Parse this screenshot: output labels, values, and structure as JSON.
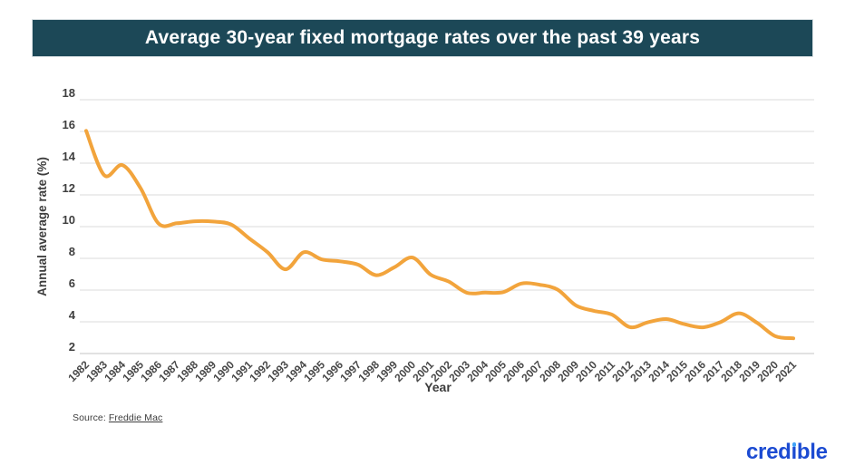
{
  "banner": {
    "title": "Average 30-year fixed mortgage rates over the past 39 years",
    "bg_color": "#1C4857",
    "text_color": "#FFFFFF"
  },
  "chart_data": {
    "type": "line",
    "title": "Average 30-year fixed mortgage rates over the past 39 years",
    "xlabel": "Year",
    "ylabel": "Annual average rate (%)",
    "ylim": [
      2,
      18
    ],
    "yticks": [
      2,
      4,
      6,
      8,
      10,
      12,
      14,
      16,
      18
    ],
    "grid": "horizontal",
    "legend": "none",
    "x": [
      1982,
      1983,
      1984,
      1985,
      1986,
      1987,
      1988,
      1989,
      1990,
      1991,
      1992,
      1993,
      1994,
      1995,
      1996,
      1997,
      1998,
      1999,
      2000,
      2001,
      2002,
      2003,
      2004,
      2005,
      2006,
      2007,
      2008,
      2009,
      2010,
      2011,
      2012,
      2013,
      2014,
      2015,
      2016,
      2017,
      2018,
      2019,
      2020,
      2021
    ],
    "series": [
      {
        "name": "Average 30-year fixed mortgage rate (%)",
        "color": "#F2A43C",
        "values": [
          16.04,
          13.24,
          13.88,
          12.43,
          10.19,
          10.21,
          10.34,
          10.32,
          10.13,
          9.25,
          8.39,
          7.31,
          8.38,
          7.93,
          7.81,
          7.6,
          6.94,
          7.44,
          8.05,
          6.97,
          6.54,
          5.83,
          5.84,
          5.87,
          6.41,
          6.34,
          6.03,
          5.04,
          4.69,
          4.45,
          3.66,
          3.98,
          4.17,
          3.85,
          3.65,
          3.99,
          4.54,
          3.94,
          3.1,
          2.96
        ]
      }
    ],
    "axis_text_color": "#3E3E3E",
    "gridline_color": "#E7E7E7"
  },
  "footer": {
    "source_prefix": "Source:",
    "source_link_text": "Freddie Mac",
    "logo_text": "credible",
    "logo_pre": "cred",
    "logo_i": "ı",
    "logo_post": "ble",
    "logo_color": "#1C4BD2",
    "logo_dot_color": "#3FA2F7"
  }
}
